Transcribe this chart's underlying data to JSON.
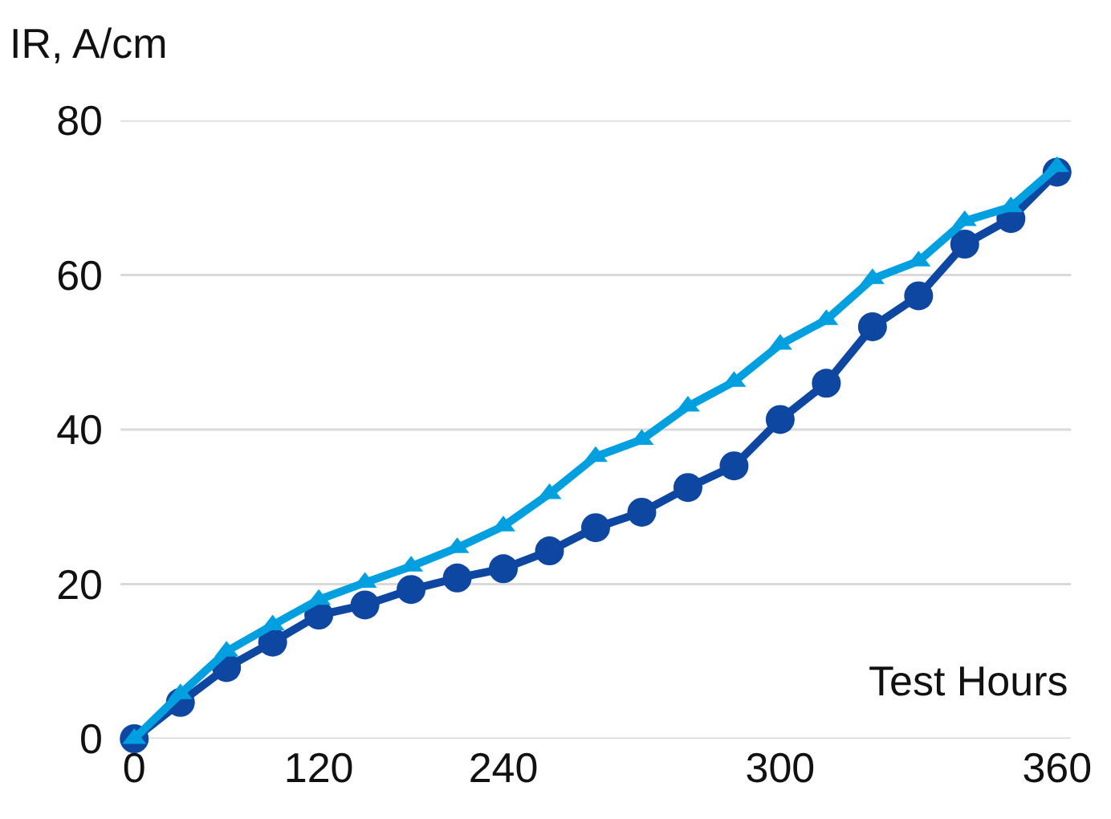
{
  "chart_data": {
    "type": "line",
    "xlabel": "Test Hours",
    "ylabel": "IR, A/cm",
    "categories": [
      "0",
      null,
      null,
      null,
      "120",
      null,
      null,
      null,
      "240",
      null,
      null,
      null,
      null,
      null,
      "300",
      null,
      null,
      null,
      null,
      null,
      "360"
    ],
    "series": [
      {
        "color": "#0d47a1",
        "marker": "circle",
        "values": [
          0,
          4.7,
          9.2,
          12.5,
          16,
          17.3,
          19.3,
          20.8,
          22,
          24.3,
          27.3,
          29.3,
          32.5,
          35.3,
          41.3,
          46,
          53.3,
          57.3,
          64,
          67.3,
          73.3
        ]
      },
      {
        "color": "#00a0e0",
        "marker": "triangle",
        "values": [
          0,
          5.8,
          11.3,
          14.7,
          18,
          20.2,
          22.3,
          24.7,
          27.5,
          31.7,
          36.5,
          38.7,
          43,
          46.2,
          51,
          54.2,
          59.5,
          61.8,
          67,
          68.8,
          74
        ]
      }
    ],
    "ylim": [
      0,
      80
    ],
    "yticks": [
      0,
      20,
      40,
      60,
      80
    ],
    "grid": "y",
    "legend": false
  }
}
